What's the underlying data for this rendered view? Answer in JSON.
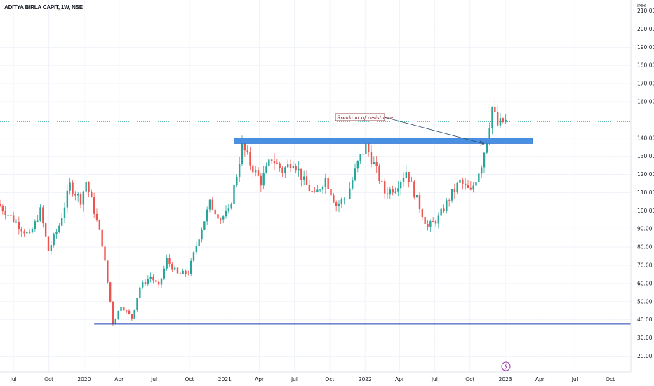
{
  "header": {
    "symbol": "ADITYA BIRLA CAPIT, 1W, NSE",
    "currency": "INR"
  },
  "chart_data": {
    "type": "candlestick",
    "title": "ADITYA BIRLA CAPIT, 1W, NSE",
    "y_axis": {
      "unit": "INR",
      "ticks": [
        "210.00",
        "200.00",
        "190.00",
        "180.00",
        "170.00",
        "160.00",
        "140.00",
        "130.00",
        "120.00",
        "110.00",
        "100.00",
        "90.00",
        "80.00",
        "70.00",
        "60.00",
        "50.00",
        "40.00",
        "30.00",
        "20.00"
      ],
      "ylim": [
        14,
        216
      ]
    },
    "x_axis": {
      "ticks": [
        {
          "label": "Jul",
          "date": "2019-07"
        },
        {
          "label": "Oct",
          "date": "2019-10"
        },
        {
          "label": "2020",
          "date": "2020-01"
        },
        {
          "label": "Apr",
          "date": "2020-04"
        },
        {
          "label": "Jul",
          "date": "2020-07"
        },
        {
          "label": "Oct",
          "date": "2020-10"
        },
        {
          "label": "2021",
          "date": "2021-01"
        },
        {
          "label": "Apr",
          "date": "2021-04"
        },
        {
          "label": "Jul",
          "date": "2021-07"
        },
        {
          "label": "Oct",
          "date": "2021-10"
        },
        {
          "label": "2022",
          "date": "2022-01"
        },
        {
          "label": "Apr",
          "date": "2022-04"
        },
        {
          "label": "Jul",
          "date": "2022-07"
        },
        {
          "label": "Oct",
          "date": "2022-10"
        },
        {
          "label": "2023",
          "date": "2023-01"
        },
        {
          "label": "Apr",
          "date": "2023-04"
        },
        {
          "label": "Jul",
          "date": "2023-07"
        },
        {
          "label": "Oct",
          "date": "2023-10"
        }
      ],
      "range": [
        "2019-05-27",
        "2024-01-01"
      ]
    },
    "price_path": [
      [
        "2019-05-27",
        104
      ],
      [
        "2019-06-24",
        98
      ],
      [
        "2019-07-22",
        92
      ],
      [
        "2019-08-19",
        86
      ],
      [
        "2019-09-16",
        100
      ],
      [
        "2019-10-07",
        78
      ],
      [
        "2019-11-04",
        92
      ],
      [
        "2019-12-02",
        114
      ],
      [
        "2019-12-30",
        106
      ],
      [
        "2020-01-13",
        116
      ],
      [
        "2020-02-03",
        100
      ],
      [
        "2020-02-24",
        82
      ],
      [
        "2020-03-16",
        50
      ],
      [
        "2020-03-23",
        38
      ],
      [
        "2020-04-13",
        48
      ],
      [
        "2020-05-11",
        41
      ],
      [
        "2020-06-01",
        58
      ],
      [
        "2020-06-29",
        64
      ],
      [
        "2020-07-20",
        58
      ],
      [
        "2020-08-10",
        73
      ],
      [
        "2020-09-07",
        65
      ],
      [
        "2020-10-05",
        66
      ],
      [
        "2020-11-02",
        86
      ],
      [
        "2020-11-30",
        104
      ],
      [
        "2020-12-28",
        96
      ],
      [
        "2021-01-18",
        99
      ],
      [
        "2021-02-08",
        120
      ],
      [
        "2021-02-22",
        136
      ],
      [
        "2021-03-15",
        126
      ],
      [
        "2021-04-12",
        116
      ],
      [
        "2021-05-10",
        129
      ],
      [
        "2021-06-07",
        122
      ],
      [
        "2021-07-05",
        128
      ],
      [
        "2021-08-02",
        116
      ],
      [
        "2021-08-30",
        108
      ],
      [
        "2021-09-27",
        118
      ],
      [
        "2021-10-25",
        103
      ],
      [
        "2021-11-22",
        108
      ],
      [
        "2021-12-20",
        126
      ],
      [
        "2022-01-10",
        136
      ],
      [
        "2022-02-07",
        122
      ],
      [
        "2022-02-28",
        110
      ],
      [
        "2022-03-28",
        113
      ],
      [
        "2022-04-25",
        122
      ],
      [
        "2022-05-23",
        106
      ],
      [
        "2022-06-20",
        91
      ],
      [
        "2022-07-18",
        96
      ],
      [
        "2022-08-15",
        107
      ],
      [
        "2022-09-12",
        116
      ],
      [
        "2022-10-10",
        110
      ],
      [
        "2022-11-07",
        126
      ],
      [
        "2022-11-21",
        140
      ],
      [
        "2022-12-05",
        157
      ],
      [
        "2022-12-19",
        147
      ],
      [
        "2023-01-02",
        149
      ]
    ],
    "last_price": "148.95",
    "support_level": "37.80",
    "resistance_zone": [
      137,
      140
    ],
    "annotations": [
      "Breakout of resistance"
    ],
    "colors": {
      "up": "#26a69a",
      "down": "#ef5350",
      "resistance": "#4a90e2",
      "support": "#1e3fb4",
      "last_price_line": "#26a69a",
      "annotation": "#801922"
    },
    "grid": true,
    "legend": "none"
  },
  "footer": {
    "icon": "lightning-icon"
  }
}
